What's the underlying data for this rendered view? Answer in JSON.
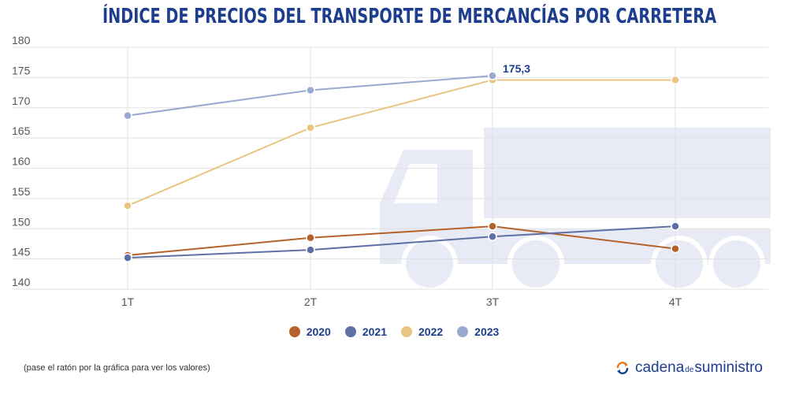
{
  "title": "ÍNDICE DE PRECIOS DEL TRANSPORTE DE MERCANCÍAS POR CARRETERA",
  "chart_data": {
    "type": "line",
    "categories": [
      "1T",
      "2T",
      "3T",
      "4T"
    ],
    "ylim": [
      140,
      180
    ],
    "yticks": [
      "140",
      "145",
      "150",
      "155",
      "160",
      "165",
      "170",
      "175",
      "180"
    ],
    "grid": true,
    "legend_placement": "bottom-center",
    "series": [
      {
        "name": "2020",
        "color": "#b5622a",
        "values": [
          145.6,
          148.5,
          150.4,
          146.7
        ]
      },
      {
        "name": "2021",
        "color": "#5e6fa6",
        "values": [
          145.2,
          146.5,
          148.7,
          150.4
        ]
      },
      {
        "name": "2022",
        "color": "#eac482",
        "values": [
          153.8,
          166.7,
          174.6,
          174.6
        ]
      },
      {
        "name": "2023",
        "color": "#9aa9d0",
        "values": [
          168.7,
          172.9,
          175.3,
          null
        ]
      }
    ],
    "annotations": [
      {
        "series": "2023",
        "category": "3T",
        "text": "175,3"
      }
    ]
  },
  "note": "(pase el ratón por la gráfica para ver los valores)",
  "logo": {
    "part1": "cadena",
    "part2": "de",
    "part3": "suministro"
  },
  "colors": {
    "title": "#1d3d8f",
    "truck": "#e8ebf5",
    "grid": "#e2e2e2"
  }
}
